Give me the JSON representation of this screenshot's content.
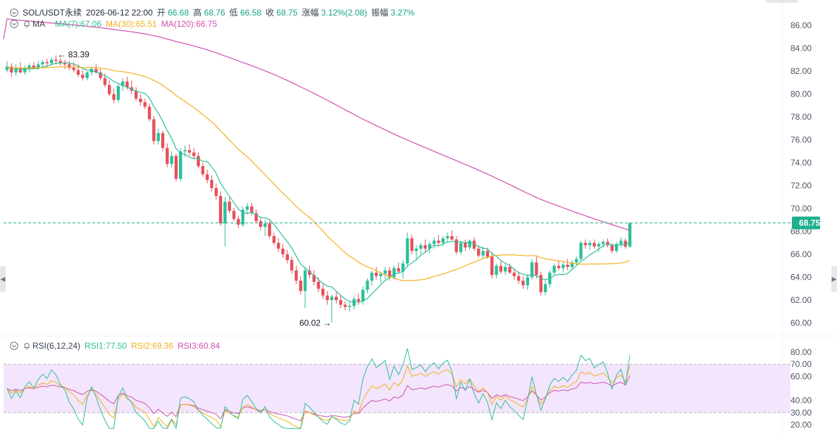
{
  "header": {
    "symbol": "SOL/USDT永续",
    "datetime": "2026-06-12 22:00",
    "open_label": "开",
    "open": "66.68",
    "high_label": "高",
    "high": "68.76",
    "low_label": "低",
    "low": "66.58",
    "close_label": "收",
    "close": "68.75",
    "change_label": "涨幅",
    "change": "3.12%(2.08)",
    "amp_label": "振幅",
    "amp": "3.27%"
  },
  "ma_legend": {
    "name": "MA",
    "ma7": "MA(7):67.06",
    "ma30": "MA(30):65.51",
    "ma120": "MA(120):66.75"
  },
  "rsi_legend": {
    "name": "RSI(6,12,24)",
    "rsi1": "RSI1:77.50",
    "rsi2": "RSI2:69.36",
    "rsi3": "RSI3:60.84"
  },
  "colors": {
    "up": "#2dbf9a",
    "down": "#e5515b",
    "ma7": "#2dbf9a",
    "ma30": "#f2b01e",
    "ma120": "#d24fb0",
    "rsi1": "#2dbf9a",
    "rsi2": "#f2b01e",
    "rsi3": "#d24fb0",
    "rsi_band": "#f3e5fb",
    "last_price": "#1fae8e"
  },
  "icons": [
    "collapse-chevron-icon",
    "bell-icon",
    "chevron-left-icon",
    "chevron-right-icon"
  ],
  "chart_data": [
    {
      "type": "candlestick",
      "title": "SOL/USDT永续",
      "y_ticks": [
        "86.00",
        "84.00",
        "82.00",
        "80.00",
        "78.00",
        "76.00",
        "74.00",
        "72.00",
        "70.00",
        "68.00",
        "66.00",
        "64.00",
        "62.00",
        "60.00"
      ],
      "ylim": [
        59.3,
        87.3
      ],
      "last_price": "68.75",
      "annotations": {
        "high": "83.39",
        "low": "60.02"
      },
      "candles": [
        [
          82.1,
          82.9,
          81.9,
          82.4
        ],
        [
          82.4,
          82.7,
          81.5,
          81.9
        ],
        [
          81.9,
          82.6,
          81.6,
          82.2
        ],
        [
          82.2,
          82.8,
          81.8,
          81.9
        ],
        [
          81.9,
          82.5,
          81.7,
          82.3
        ],
        [
          82.3,
          82.7,
          81.9,
          82.5
        ],
        [
          82.5,
          82.8,
          82.2,
          82.3
        ],
        [
          82.3,
          82.9,
          82.1,
          82.6
        ],
        [
          82.6,
          83.0,
          82.3,
          82.8
        ],
        [
          82.8,
          83.1,
          82.4,
          82.7
        ],
        [
          82.7,
          83.2,
          82.5,
          83.0
        ],
        [
          83.0,
          83.39,
          82.6,
          82.9
        ],
        [
          82.9,
          83.2,
          82.5,
          82.7
        ],
        [
          82.7,
          83.0,
          82.2,
          82.6
        ],
        [
          82.6,
          82.9,
          82.1,
          82.3
        ],
        [
          82.3,
          82.8,
          81.9,
          82.1
        ],
        [
          82.1,
          82.6,
          81.5,
          81.7
        ],
        [
          81.7,
          82.1,
          81.2,
          81.4
        ],
        [
          81.4,
          82.0,
          81.2,
          81.9
        ],
        [
          81.9,
          82.4,
          81.6,
          82.2
        ],
        [
          82.2,
          82.6,
          81.8,
          81.9
        ],
        [
          81.9,
          82.2,
          81.2,
          81.4
        ],
        [
          81.4,
          81.8,
          80.6,
          80.8
        ],
        [
          80.8,
          81.2,
          79.8,
          80.0
        ],
        [
          80.0,
          80.5,
          79.2,
          79.5
        ],
        [
          79.5,
          80.9,
          79.3,
          80.7
        ],
        [
          80.7,
          81.4,
          80.3,
          81.1
        ],
        [
          81.1,
          81.5,
          80.4,
          80.6
        ],
        [
          80.6,
          81.2,
          80.0,
          80.3
        ],
        [
          80.3,
          80.6,
          79.4,
          79.6
        ],
        [
          79.6,
          80.0,
          79.0,
          79.3
        ],
        [
          79.3,
          79.6,
          78.7,
          78.9
        ],
        [
          78.9,
          79.2,
          77.6,
          77.8
        ],
        [
          77.8,
          78.1,
          75.6,
          75.9
        ],
        [
          75.9,
          77.0,
          75.6,
          76.6
        ],
        [
          76.6,
          76.8,
          75.0,
          75.3
        ],
        [
          75.3,
          75.7,
          73.6,
          73.9
        ],
        [
          73.9,
          75.0,
          73.6,
          74.6
        ],
        [
          74.6,
          74.8,
          72.4,
          72.6
        ],
        [
          72.6,
          75.3,
          72.4,
          75.0
        ],
        [
          75.0,
          75.5,
          74.5,
          75.1
        ],
        [
          75.1,
          75.6,
          74.6,
          74.9
        ],
        [
          74.9,
          75.3,
          74.3,
          74.6
        ],
        [
          74.6,
          74.9,
          73.5,
          73.7
        ],
        [
          73.7,
          74.0,
          72.8,
          73.0
        ],
        [
          73.0,
          73.4,
          72.2,
          72.5
        ],
        [
          72.5,
          72.9,
          71.5,
          71.8
        ],
        [
          71.8,
          72.2,
          70.8,
          71.1
        ],
        [
          71.1,
          71.5,
          68.5,
          68.7
        ],
        [
          68.7,
          71.0,
          66.7,
          70.6
        ],
        [
          70.6,
          71.0,
          69.6,
          69.8
        ],
        [
          69.8,
          70.1,
          68.9,
          69.1
        ],
        [
          69.1,
          69.4,
          68.3,
          68.6
        ],
        [
          68.6,
          70.2,
          68.4,
          69.9
        ],
        [
          69.9,
          70.5,
          69.5,
          70.2
        ],
        [
          70.2,
          70.5,
          69.4,
          69.6
        ],
        [
          69.6,
          69.9,
          68.7,
          68.9
        ],
        [
          68.9,
          69.2,
          68.1,
          68.4
        ],
        [
          68.4,
          69.0,
          67.6,
          68.7
        ],
        [
          68.7,
          68.9,
          67.4,
          67.6
        ],
        [
          67.6,
          67.9,
          66.8,
          67.0
        ],
        [
          67.0,
          67.4,
          66.2,
          66.5
        ],
        [
          66.5,
          66.9,
          65.7,
          66.0
        ],
        [
          66.0,
          66.4,
          65.2,
          65.5
        ],
        [
          65.5,
          65.8,
          64.3,
          64.6
        ],
        [
          64.6,
          65.0,
          63.4,
          63.7
        ],
        [
          63.7,
          64.1,
          62.5,
          62.8
        ],
        [
          62.8,
          64.9,
          61.3,
          64.6
        ],
        [
          64.6,
          65.0,
          63.9,
          64.2
        ],
        [
          64.2,
          64.6,
          63.3,
          63.6
        ],
        [
          63.6,
          64.0,
          62.7,
          63.0
        ],
        [
          63.0,
          63.4,
          62.1,
          62.4
        ],
        [
          62.4,
          62.8,
          61.6,
          62.0
        ],
        [
          62.0,
          62.5,
          60.02,
          62.3
        ],
        [
          62.3,
          62.7,
          61.7,
          62.0
        ],
        [
          62.0,
          62.4,
          61.3,
          61.6
        ],
        [
          61.6,
          61.9,
          61.1,
          61.4
        ],
        [
          61.4,
          61.8,
          61.0,
          61.5
        ],
        [
          61.5,
          62.3,
          61.2,
          62.1
        ],
        [
          62.1,
          62.6,
          61.6,
          61.9
        ],
        [
          61.9,
          63.2,
          61.6,
          62.9
        ],
        [
          62.9,
          63.9,
          62.6,
          63.7
        ],
        [
          63.7,
          64.6,
          63.3,
          64.4
        ],
        [
          64.4,
          64.9,
          63.8,
          64.1
        ],
        [
          64.1,
          64.5,
          63.5,
          64.3
        ],
        [
          64.3,
          64.9,
          63.8,
          64.6
        ],
        [
          64.6,
          64.9,
          63.7,
          64.0
        ],
        [
          64.0,
          65.0,
          63.8,
          64.8
        ],
        [
          64.8,
          65.3,
          64.3,
          64.5
        ],
        [
          64.5,
          65.5,
          63.9,
          65.2
        ],
        [
          65.2,
          67.9,
          64.9,
          67.4
        ],
        [
          67.4,
          67.7,
          66.0,
          66.3
        ],
        [
          66.3,
          66.8,
          65.6,
          66.5
        ],
        [
          66.5,
          67.0,
          66.0,
          66.8
        ],
        [
          66.8,
          67.3,
          66.2,
          66.5
        ],
        [
          66.5,
          67.1,
          66.1,
          66.9
        ],
        [
          66.9,
          67.5,
          66.5,
          67.2
        ],
        [
          67.2,
          67.7,
          66.8,
          67.0
        ],
        [
          67.0,
          67.6,
          66.7,
          67.4
        ],
        [
          67.4,
          67.9,
          67.0,
          67.6
        ],
        [
          67.6,
          68.1,
          67.2,
          67.3
        ],
        [
          67.3,
          67.6,
          66.0,
          66.2
        ],
        [
          66.2,
          67.2,
          66.0,
          67.0
        ],
        [
          67.0,
          67.3,
          66.3,
          66.6
        ],
        [
          66.6,
          67.3,
          66.4,
          67.2
        ],
        [
          67.2,
          67.5,
          66.3,
          66.5
        ],
        [
          66.5,
          66.8,
          65.7,
          65.9
        ],
        [
          65.9,
          66.7,
          65.6,
          66.3
        ],
        [
          66.3,
          66.6,
          65.6,
          65.8
        ],
        [
          65.8,
          66.2,
          63.9,
          64.2
        ],
        [
          64.2,
          65.2,
          63.9,
          65.0
        ],
        [
          65.0,
          65.4,
          64.3,
          64.5
        ],
        [
          64.5,
          65.1,
          64.2,
          64.9
        ],
        [
          64.9,
          65.2,
          64.3,
          64.4
        ],
        [
          64.4,
          64.8,
          63.8,
          64.1
        ],
        [
          64.1,
          64.5,
          63.4,
          63.7
        ],
        [
          63.7,
          64.1,
          63.0,
          63.3
        ],
        [
          63.3,
          64.3,
          62.9,
          64.0
        ],
        [
          64.0,
          65.6,
          63.8,
          65.3
        ],
        [
          65.3,
          65.8,
          63.9,
          64.2
        ],
        [
          64.2,
          64.5,
          62.4,
          62.7
        ],
        [
          62.7,
          63.8,
          62.4,
          63.4
        ],
        [
          63.4,
          64.6,
          63.1,
          64.4
        ],
        [
          64.4,
          65.2,
          64.1,
          65.0
        ],
        [
          65.0,
          65.4,
          64.6,
          64.8
        ],
        [
          64.8,
          65.3,
          64.4,
          65.1
        ],
        [
          65.1,
          65.6,
          64.6,
          64.9
        ],
        [
          64.9,
          65.5,
          64.6,
          65.3
        ],
        [
          65.3,
          65.8,
          65.0,
          65.6
        ],
        [
          65.6,
          67.2,
          65.4,
          67.0
        ],
        [
          67.0,
          67.3,
          66.5,
          66.8
        ],
        [
          66.8,
          67.2,
          66.4,
          67.0
        ],
        [
          67.0,
          67.3,
          66.5,
          66.7
        ],
        [
          66.7,
          67.1,
          66.2,
          66.9
        ],
        [
          66.9,
          67.3,
          66.6,
          67.1
        ],
        [
          67.1,
          67.4,
          66.6,
          66.8
        ],
        [
          66.8,
          67.0,
          66.1,
          66.3
        ],
        [
          66.3,
          67.1,
          66.1,
          66.9
        ],
        [
          66.9,
          67.5,
          66.6,
          67.2
        ],
        [
          67.2,
          67.4,
          66.5,
          66.67
        ],
        [
          66.68,
          68.76,
          66.58,
          68.75
        ]
      ]
    },
    {
      "type": "line",
      "title": "RSI(6,12,24)",
      "y_ticks": [
        "80.00",
        "70.00",
        "60.00",
        "40.00",
        "30.00",
        "20.00"
      ],
      "band": [
        30,
        70
      ],
      "ylim": [
        16,
        84
      ],
      "latest": {
        "RSI1": 77.5,
        "RSI2": 69.36,
        "RSI3": 60.84
      }
    }
  ]
}
